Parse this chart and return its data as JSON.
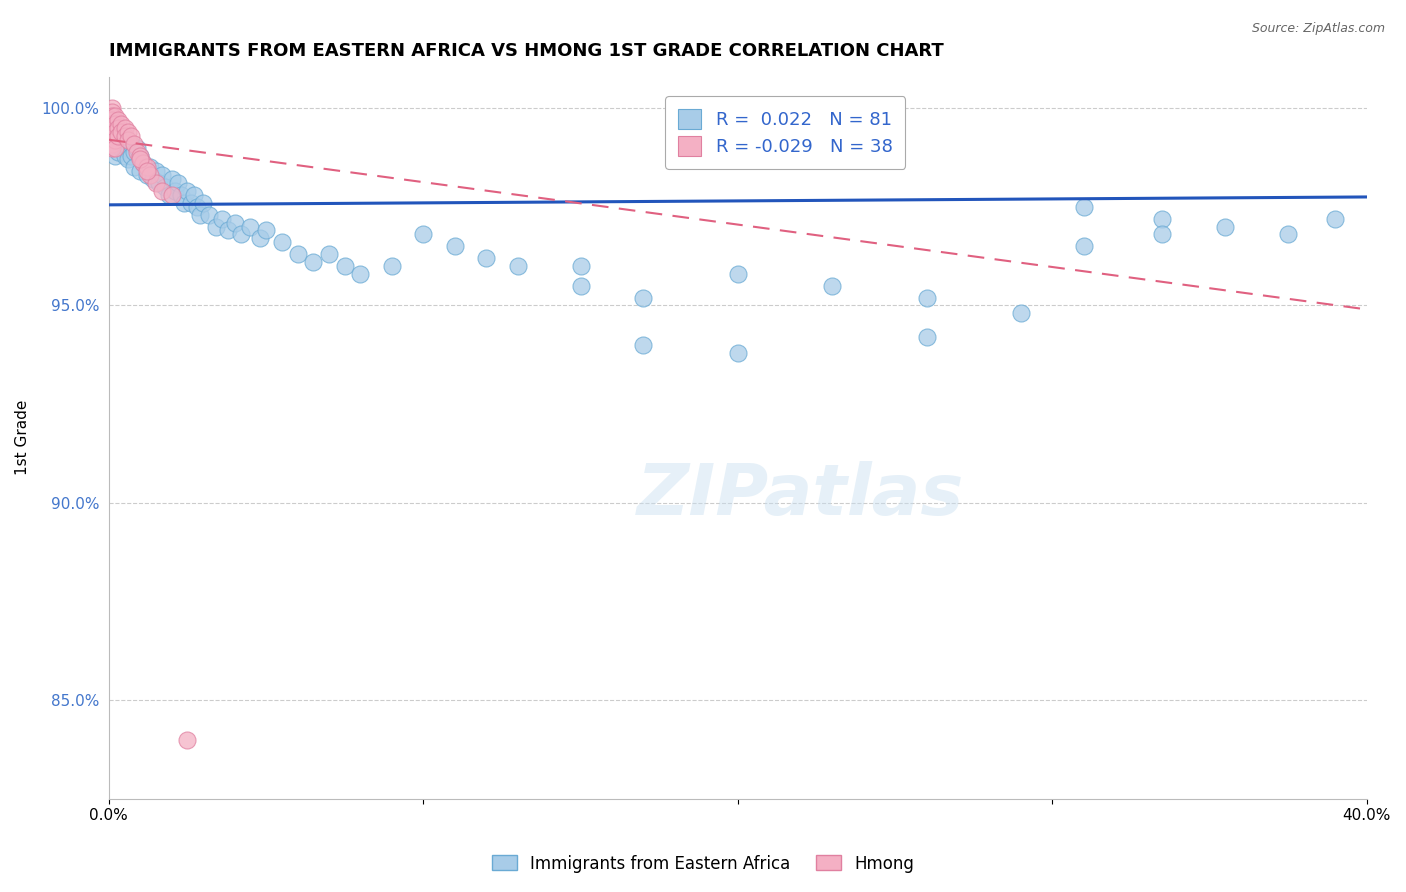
{
  "title": "IMMIGRANTS FROM EASTERN AFRICA VS HMONG 1ST GRADE CORRELATION CHART",
  "source": "Source: ZipAtlas.com",
  "ylabel": "1st Grade",
  "xlim": [
    0.0,
    0.4
  ],
  "ylim": [
    0.825,
    1.008
  ],
  "xticks": [
    0.0,
    0.1,
    0.2,
    0.3,
    0.4
  ],
  "xtick_labels": [
    "0.0%",
    "",
    "",
    "",
    "40.0%"
  ],
  "yticks": [
    0.85,
    0.9,
    0.95,
    1.0
  ],
  "ytick_labels": [
    "85.0%",
    "90.0%",
    "95.0%",
    "100.0%"
  ],
  "grid_color": "#cccccc",
  "blue_color": "#a8cce8",
  "blue_edge": "#6aaad4",
  "pink_color": "#f4b0c4",
  "pink_edge": "#e080a0",
  "blue_R": 0.022,
  "blue_N": 81,
  "pink_R": -0.029,
  "pink_N": 38,
  "trend_blue_color": "#2255bb",
  "trend_pink_color": "#e06080",
  "watermark": "ZIPatlas",
  "legend_label_blue": "Immigrants from Eastern Africa",
  "legend_label_pink": "Hmong",
  "blue_x": [
    0.001,
    0.001,
    0.001,
    0.001,
    0.002,
    0.002,
    0.002,
    0.002,
    0.003,
    0.003,
    0.003,
    0.004,
    0.004,
    0.005,
    0.005,
    0.006,
    0.006,
    0.007,
    0.007,
    0.008,
    0.008,
    0.009,
    0.01,
    0.01,
    0.011,
    0.012,
    0.013,
    0.014,
    0.015,
    0.016,
    0.017,
    0.018,
    0.019,
    0.02,
    0.021,
    0.022,
    0.023,
    0.024,
    0.025,
    0.026,
    0.027,
    0.028,
    0.029,
    0.03,
    0.032,
    0.034,
    0.036,
    0.038,
    0.04,
    0.042,
    0.045,
    0.048,
    0.05,
    0.055,
    0.06,
    0.065,
    0.07,
    0.075,
    0.08,
    0.09,
    0.1,
    0.11,
    0.12,
    0.13,
    0.15,
    0.17,
    0.2,
    0.23,
    0.26,
    0.29,
    0.31,
    0.335,
    0.355,
    0.375,
    0.39,
    0.31,
    0.335,
    0.17,
    0.2,
    0.26,
    0.15
  ],
  "blue_y": [
    0.998,
    0.995,
    0.993,
    0.991,
    0.997,
    0.994,
    0.991,
    0.988,
    0.995,
    0.992,
    0.989,
    0.993,
    0.99,
    0.992,
    0.988,
    0.99,
    0.987,
    0.991,
    0.988,
    0.989,
    0.985,
    0.99,
    0.988,
    0.984,
    0.986,
    0.983,
    0.985,
    0.982,
    0.984,
    0.981,
    0.983,
    0.98,
    0.978,
    0.982,
    0.979,
    0.981,
    0.978,
    0.976,
    0.979,
    0.976,
    0.978,
    0.975,
    0.973,
    0.976,
    0.973,
    0.97,
    0.972,
    0.969,
    0.971,
    0.968,
    0.97,
    0.967,
    0.969,
    0.966,
    0.963,
    0.961,
    0.963,
    0.96,
    0.958,
    0.96,
    0.968,
    0.965,
    0.962,
    0.96,
    0.955,
    0.952,
    0.958,
    0.955,
    0.952,
    0.948,
    0.975,
    0.972,
    0.97,
    0.968,
    0.972,
    0.965,
    0.968,
    0.94,
    0.938,
    0.942,
    0.96
  ],
  "pink_x": [
    0.001,
    0.001,
    0.001,
    0.001,
    0.001,
    0.001,
    0.001,
    0.001,
    0.001,
    0.001,
    0.001,
    0.002,
    0.002,
    0.002,
    0.002,
    0.002,
    0.003,
    0.003,
    0.003,
    0.004,
    0.004,
    0.005,
    0.005,
    0.006,
    0.006,
    0.007,
    0.008,
    0.009,
    0.01,
    0.011,
    0.012,
    0.013,
    0.015,
    0.017,
    0.02,
    0.025,
    0.01,
    0.012
  ],
  "pink_y": [
    1.0,
    0.999,
    0.998,
    0.997,
    0.996,
    0.995,
    0.994,
    0.993,
    0.992,
    0.991,
    0.99,
    0.998,
    0.996,
    0.994,
    0.992,
    0.99,
    0.997,
    0.995,
    0.993,
    0.996,
    0.994,
    0.995,
    0.993,
    0.994,
    0.992,
    0.993,
    0.991,
    0.989,
    0.988,
    0.986,
    0.985,
    0.983,
    0.981,
    0.979,
    0.978,
    0.84,
    0.987,
    0.984
  ],
  "blue_trend_y0": 0.9755,
  "blue_trend_y1": 0.9775,
  "pink_trend_y0": 0.992,
  "pink_trend_y1": 0.949
}
